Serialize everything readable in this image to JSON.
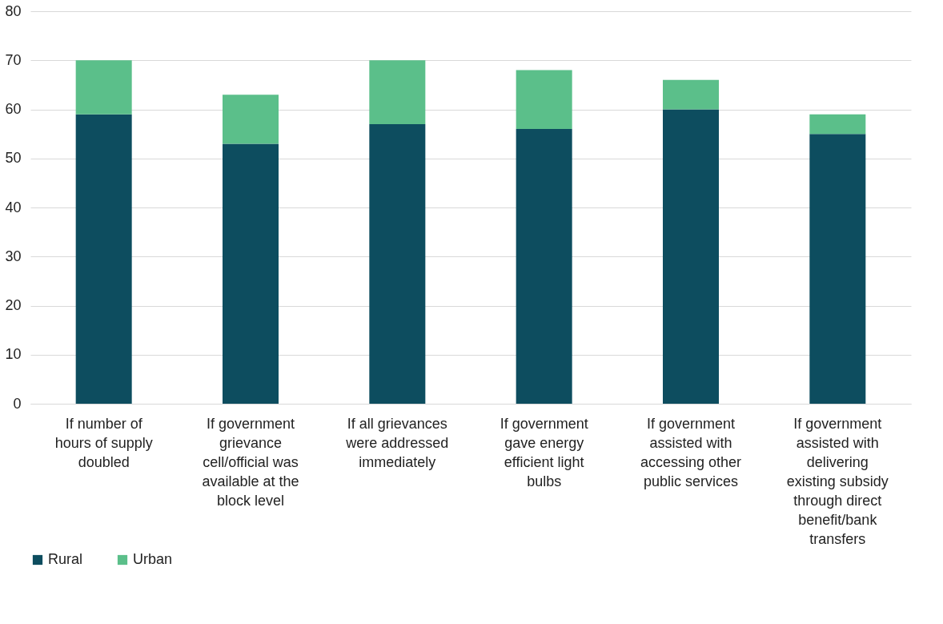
{
  "chart_data": {
    "type": "bar",
    "stacked": true,
    "categories": [
      "If number of hours of supply doubled",
      "If government grievance cell/official was available at the block level",
      "If all grievances were addressed immediately",
      "If government gave energy efficient light bulbs",
      "If government assisted with accessing other public services",
      "If government assisted with delivering existing subsidy through direct benefit/bank transfers"
    ],
    "series": [
      {
        "name": "Rural",
        "color": "#0d4d5f",
        "values": [
          59,
          53,
          57,
          56,
          60,
          55
        ]
      },
      {
        "name": "Urban",
        "color": "#5bbf8a",
        "values": [
          11,
          10,
          13,
          12,
          6,
          4
        ]
      }
    ],
    "ylim": [
      0,
      80
    ],
    "yticks": [
      0,
      10,
      20,
      30,
      40,
      50,
      60,
      70,
      80
    ],
    "grid": "y",
    "legend": "bottom"
  }
}
